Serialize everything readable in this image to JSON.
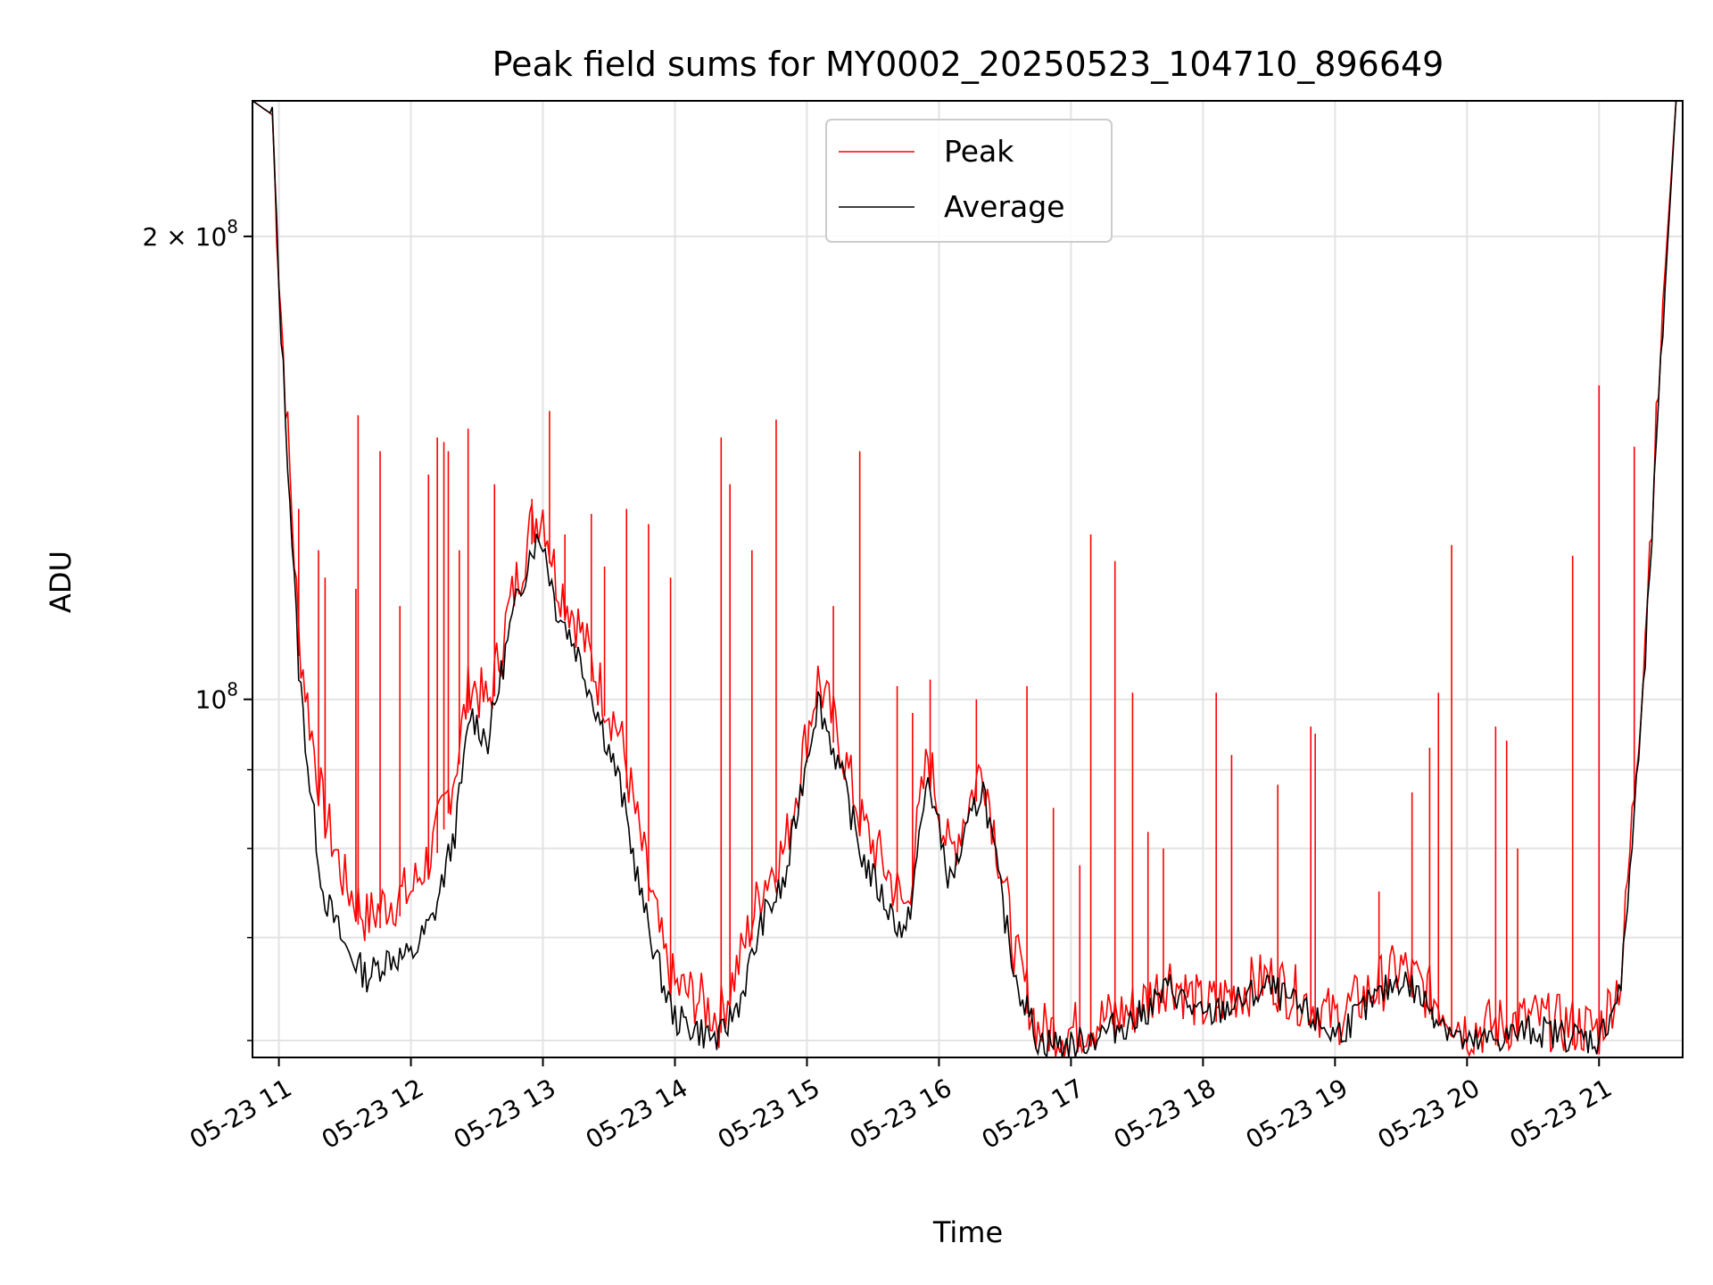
{
  "chart_data": {
    "type": "line",
    "title": "Peak field sums for MY0002_20250523_104710_896649",
    "xlabel": "Time",
    "ylabel": "ADU",
    "y_scale": "log",
    "ylim": [
      58500000,
      245000000
    ],
    "xlim": [
      "2025-05-23 10:48",
      "2025-05-23 21:38"
    ],
    "grid": true,
    "legend_position": "upper-center",
    "x_ticks": [
      {
        "t": "2025-05-23 11:00",
        "label": "05-23 11"
      },
      {
        "t": "2025-05-23 12:00",
        "label": "05-23 12"
      },
      {
        "t": "2025-05-23 13:00",
        "label": "05-23 13"
      },
      {
        "t": "2025-05-23 14:00",
        "label": "05-23 14"
      },
      {
        "t": "2025-05-23 15:00",
        "label": "05-23 15"
      },
      {
        "t": "2025-05-23 16:00",
        "label": "05-23 16"
      },
      {
        "t": "2025-05-23 17:00",
        "label": "05-23 17"
      },
      {
        "t": "2025-05-23 18:00",
        "label": "05-23 18"
      },
      {
        "t": "2025-05-23 19:00",
        "label": "05-23 19"
      },
      {
        "t": "2025-05-23 20:00",
        "label": "05-23 20"
      },
      {
        "t": "2025-05-23 21:00",
        "label": "05-23 21"
      }
    ],
    "y_major_ticks": [
      {
        "value": 100000000,
        "base": "10",
        "exp": "8",
        "coef": ""
      },
      {
        "value": 200000000,
        "base": "10",
        "exp": "8",
        "coef": "2 × "
      }
    ],
    "y_minor_ticks": [
      60000000,
      70000000,
      80000000,
      90000000
    ],
    "series": [
      {
        "name": "Peak",
        "color": "#ff0000",
        "points": [
          [
            "2025-05-23 10:48",
            245000000
          ],
          [
            "2025-05-23 10:57",
            240000000
          ],
          [
            "2025-05-23 11:00",
            190000000
          ],
          [
            "2025-05-23 11:05",
            140000000
          ],
          [
            "2025-05-23 11:09",
            110000000
          ],
          [
            "2025-05-23 11:14",
            97000000
          ],
          [
            "2025-05-23 11:20",
            85000000
          ],
          [
            "2025-05-23 11:30",
            76000000
          ],
          [
            "2025-05-23 11:40",
            72000000
          ],
          [
            "2025-05-23 11:50",
            74000000
          ],
          [
            "2025-05-23 12:00",
            75000000
          ],
          [
            "2025-05-23 12:10",
            80000000
          ],
          [
            "2025-05-23 12:20",
            90000000
          ],
          [
            "2025-05-23 12:27",
            103000000
          ],
          [
            "2025-05-23 12:35",
            99000000
          ],
          [
            "2025-05-23 12:45",
            115000000
          ],
          [
            "2025-05-23 12:55",
            130000000
          ],
          [
            "2025-05-23 13:00",
            133000000
          ],
          [
            "2025-05-23 13:06",
            120000000
          ],
          [
            "2025-05-23 13:15",
            113000000
          ],
          [
            "2025-05-23 13:25",
            103000000
          ],
          [
            "2025-05-23 13:35",
            95000000
          ],
          [
            "2025-05-23 13:45",
            80000000
          ],
          [
            "2025-05-23 13:55",
            68000000
          ],
          [
            "2025-05-23 14:00",
            65000000
          ],
          [
            "2025-05-23 14:10",
            64000000
          ],
          [
            "2025-05-23 14:20",
            62000000
          ],
          [
            "2025-05-23 14:30",
            68000000
          ],
          [
            "2025-05-23 14:40",
            76000000
          ],
          [
            "2025-05-23 14:50",
            80000000
          ],
          [
            "2025-05-23 15:00",
            95000000
          ],
          [
            "2025-05-23 15:05",
            103000000
          ],
          [
            "2025-05-23 15:15",
            94000000
          ],
          [
            "2025-05-23 15:25",
            83000000
          ],
          [
            "2025-05-23 15:35",
            78000000
          ],
          [
            "2025-05-23 15:45",
            73000000
          ],
          [
            "2025-05-23 15:55",
            92000000
          ],
          [
            "2025-05-23 16:05",
            79000000
          ],
          [
            "2025-05-23 16:20",
            91000000
          ],
          [
            "2025-05-23 16:30",
            75000000
          ],
          [
            "2025-05-23 16:35",
            68000000
          ],
          [
            "2025-05-23 16:45",
            61000000
          ],
          [
            "2025-05-23 17:00",
            61000000
          ],
          [
            "2025-05-23 17:30",
            63000000
          ],
          [
            "2025-05-23 17:45",
            66000000
          ],
          [
            "2025-05-23 18:00",
            63000000
          ],
          [
            "2025-05-23 18:30",
            66000000
          ],
          [
            "2025-05-23 19:00",
            62000000
          ],
          [
            "2025-05-23 19:30",
            67000000
          ],
          [
            "2025-05-23 20:00",
            61000000
          ],
          [
            "2025-05-23 20:30",
            62000000
          ],
          [
            "2025-05-23 21:00",
            61000000
          ],
          [
            "2025-05-23 21:10",
            66000000
          ],
          [
            "2025-05-23 21:20",
            105000000
          ],
          [
            "2025-05-23 21:30",
            190000000
          ],
          [
            "2025-05-23 21:35",
            245000000
          ]
        ]
      },
      {
        "name": "Average",
        "color": "#000000",
        "points": [
          [
            "2025-05-23 10:48",
            245000000
          ],
          [
            "2025-05-23 10:57",
            240000000
          ],
          [
            "2025-05-23 11:00",
            185000000
          ],
          [
            "2025-05-23 11:05",
            135000000
          ],
          [
            "2025-05-23 11:09",
            105000000
          ],
          [
            "2025-05-23 11:14",
            88000000
          ],
          [
            "2025-05-23 11:20",
            75000000
          ],
          [
            "2025-05-23 11:30",
            69000000
          ],
          [
            "2025-05-23 11:40",
            66000000
          ],
          [
            "2025-05-23 11:50",
            68000000
          ],
          [
            "2025-05-23 12:00",
            68000000
          ],
          [
            "2025-05-23 12:10",
            72000000
          ],
          [
            "2025-05-23 12:20",
            82000000
          ],
          [
            "2025-05-23 12:27",
            98000000
          ],
          [
            "2025-05-23 12:35",
            94000000
          ],
          [
            "2025-05-23 12:45",
            111000000
          ],
          [
            "2025-05-23 12:55",
            126000000
          ],
          [
            "2025-05-23 13:00",
            127000000
          ],
          [
            "2025-05-23 13:06",
            115000000
          ],
          [
            "2025-05-23 13:15",
            108000000
          ],
          [
            "2025-05-23 13:25",
            98000000
          ],
          [
            "2025-05-23 13:35",
            88000000
          ],
          [
            "2025-05-23 13:45",
            74000000
          ],
          [
            "2025-05-23 13:55",
            65000000
          ],
          [
            "2025-05-23 14:00",
            62000000
          ],
          [
            "2025-05-23 14:10",
            61000000
          ],
          [
            "2025-05-23 14:20",
            60000000
          ],
          [
            "2025-05-23 14:30",
            64000000
          ],
          [
            "2025-05-23 14:40",
            72000000
          ],
          [
            "2025-05-23 14:50",
            76000000
          ],
          [
            "2025-05-23 15:00",
            92000000
          ],
          [
            "2025-05-23 15:05",
            100000000
          ],
          [
            "2025-05-23 15:15",
            90000000
          ],
          [
            "2025-05-23 15:25",
            79000000
          ],
          [
            "2025-05-23 15:35",
            74000000
          ],
          [
            "2025-05-23 15:45",
            70000000
          ],
          [
            "2025-05-23 15:55",
            89000000
          ],
          [
            "2025-05-23 16:05",
            76000000
          ],
          [
            "2025-05-23 16:20",
            88000000
          ],
          [
            "2025-05-23 16:30",
            72000000
          ],
          [
            "2025-05-23 16:35",
            66000000
          ],
          [
            "2025-05-23 16:45",
            60000000
          ],
          [
            "2025-05-23 17:00",
            59500000
          ],
          [
            "2025-05-23 17:30",
            62000000
          ],
          [
            "2025-05-23 17:45",
            65000000
          ],
          [
            "2025-05-23 18:00",
            62000000
          ],
          [
            "2025-05-23 18:30",
            65000000
          ],
          [
            "2025-05-23 19:00",
            60500000
          ],
          [
            "2025-05-23 19:30",
            66000000
          ],
          [
            "2025-05-23 20:00",
            59500000
          ],
          [
            "2025-05-23 20:30",
            61000000
          ],
          [
            "2025-05-23 21:00",
            60000000
          ],
          [
            "2025-05-23 21:10",
            65000000
          ],
          [
            "2025-05-23 21:20",
            100000000
          ],
          [
            "2025-05-23 21:30",
            185000000
          ],
          [
            "2025-05-23 21:35",
            245000000
          ]
        ]
      }
    ],
    "peak_spikes": [
      [
        "2025-05-23 11:09",
        133000000
      ],
      [
        "2025-05-23 11:18",
        125000000
      ],
      [
        "2025-05-23 11:21",
        120000000
      ],
      [
        "2025-05-23 11:36",
        153000000
      ],
      [
        "2025-05-23 11:35",
        118000000
      ],
      [
        "2025-05-23 11:46",
        145000000
      ],
      [
        "2025-05-23 11:55",
        115000000
      ],
      [
        "2025-05-23 12:08",
        140000000
      ],
      [
        "2025-05-23 12:12",
        148000000
      ],
      [
        "2025-05-23 12:15",
        147000000
      ],
      [
        "2025-05-23 12:17",
        145000000
      ],
      [
        "2025-05-23 12:22",
        125000000
      ],
      [
        "2025-05-23 12:26",
        150000000
      ],
      [
        "2025-05-23 12:38",
        138000000
      ],
      [
        "2025-05-23 12:55",
        135000000
      ],
      [
        "2025-05-23 13:03",
        154000000
      ],
      [
        "2025-05-23 13:10",
        128000000
      ],
      [
        "2025-05-23 13:22",
        132000000
      ],
      [
        "2025-05-23 13:28",
        122000000
      ],
      [
        "2025-05-23 13:38",
        133000000
      ],
      [
        "2025-05-23 13:48",
        130000000
      ],
      [
        "2025-05-23 13:58",
        120000000
      ],
      [
        "2025-05-23 14:21",
        148000000
      ],
      [
        "2025-05-23 14:25",
        138000000
      ],
      [
        "2025-05-23 14:35",
        125000000
      ],
      [
        "2025-05-23 14:46",
        152000000
      ],
      [
        "2025-05-23 15:12",
        115000000
      ],
      [
        "2025-05-23 15:24",
        145000000
      ],
      [
        "2025-05-23 15:41",
        102000000
      ],
      [
        "2025-05-23 15:48",
        98000000
      ],
      [
        "2025-05-23 15:56",
        103000000
      ],
      [
        "2025-05-23 16:17",
        100000000
      ],
      [
        "2025-05-23 16:40",
        102000000
      ],
      [
        "2025-05-23 16:52",
        85000000
      ],
      [
        "2025-05-23 17:04",
        78000000
      ],
      [
        "2025-05-23 17:09",
        128000000
      ],
      [
        "2025-05-23 17:20",
        123000000
      ],
      [
        "2025-05-23 17:28",
        101000000
      ],
      [
        "2025-05-23 17:35",
        82000000
      ],
      [
        "2025-05-23 17:42",
        80000000
      ],
      [
        "2025-05-23 18:06",
        101000000
      ],
      [
        "2025-05-23 18:13",
        92000000
      ],
      [
        "2025-05-23 18:34",
        88000000
      ],
      [
        "2025-05-23 18:49",
        96000000
      ],
      [
        "2025-05-23 18:51",
        95000000
      ],
      [
        "2025-05-23 19:20",
        75000000
      ],
      [
        "2025-05-23 19:35",
        87000000
      ],
      [
        "2025-05-23 19:43",
        93000000
      ],
      [
        "2025-05-23 19:47",
        101000000
      ],
      [
        "2025-05-23 19:53",
        126000000
      ],
      [
        "2025-05-23 20:13",
        96000000
      ],
      [
        "2025-05-23 20:18",
        94000000
      ],
      [
        "2025-05-23 20:23",
        80000000
      ],
      [
        "2025-05-23 20:48",
        124000000
      ],
      [
        "2025-05-23 21:00",
        160000000
      ],
      [
        "2025-05-23 21:16",
        146000000
      ]
    ]
  }
}
